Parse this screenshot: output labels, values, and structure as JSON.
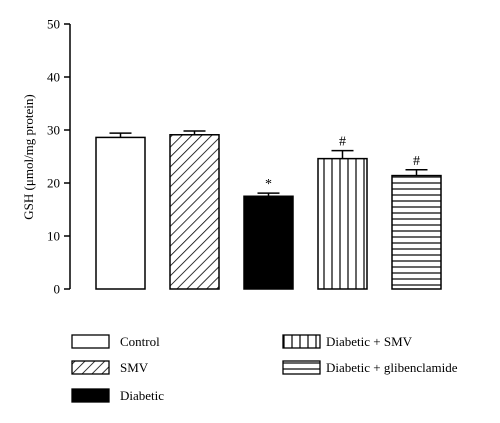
{
  "chart_data": {
    "type": "bar",
    "ylabel": "GSH (μmol/mg protein)",
    "ylim": [
      0,
      50
    ],
    "yticks": [
      0,
      10,
      20,
      30,
      40,
      50
    ],
    "grid": false,
    "legend_position": "bottom",
    "categories": [
      "Control",
      "SMV",
      "Diabetic",
      "Diabetic + SMV",
      "Diabetic + glibenclamide"
    ],
    "values": [
      28.6,
      29.1,
      17.5,
      24.6,
      21.4
    ],
    "errors": [
      0.8,
      0.7,
      0.6,
      1.5,
      1.1
    ],
    "annotations": [
      "",
      "",
      "*",
      "#",
      "#"
    ],
    "fills": [
      "white",
      "diagonal-hatch",
      "black",
      "vertical-lines",
      "horizontal-lines"
    ]
  }
}
